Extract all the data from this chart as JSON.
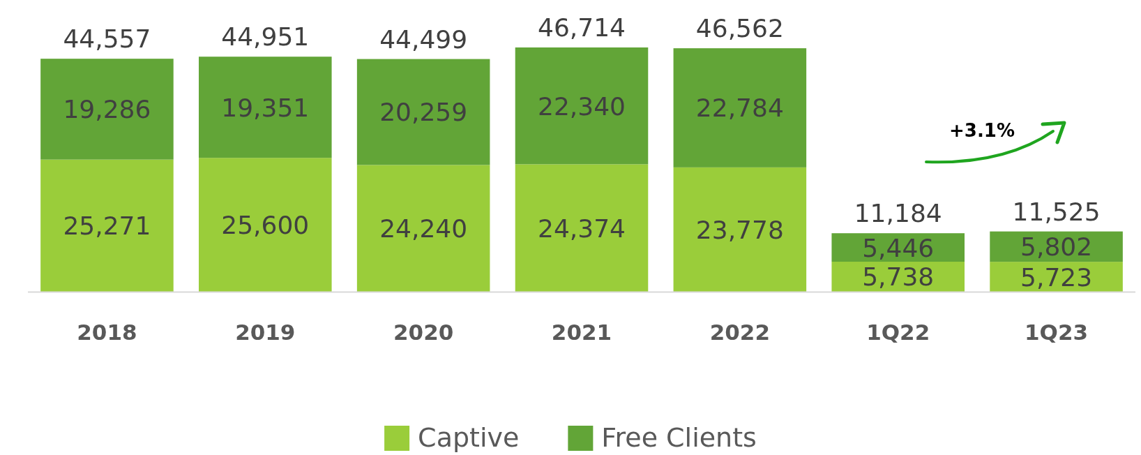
{
  "chart_data": {
    "type": "bar",
    "stacked": true,
    "legend": "bottom",
    "categories": [
      "2018",
      "2019",
      "2020",
      "2021",
      "2022",
      "1Q22",
      "1Q23"
    ],
    "series": [
      {
        "name": "Captive",
        "color": "#9acd3a",
        "values": [
          25271,
          25600,
          24240,
          24374,
          23778,
          5738,
          5723
        ],
        "value_labels": [
          "25,271",
          "25,600",
          "24,240",
          "24,374",
          "23,778",
          "5,738",
          "5,723"
        ]
      },
      {
        "name": "Free Clients",
        "color": "#62a537",
        "values": [
          19286,
          19351,
          20259,
          22340,
          22784,
          5446,
          5802
        ],
        "value_labels": [
          "19,286",
          "19,351",
          "20,259",
          "22,340",
          "22,784",
          "5,446",
          "5,802"
        ]
      }
    ],
    "totals": [
      "44,557",
      "44,951",
      "44,499",
      "46,714",
      "46,562",
      "11,184",
      "11,525"
    ],
    "annotations": [
      "+3.1%"
    ]
  }
}
